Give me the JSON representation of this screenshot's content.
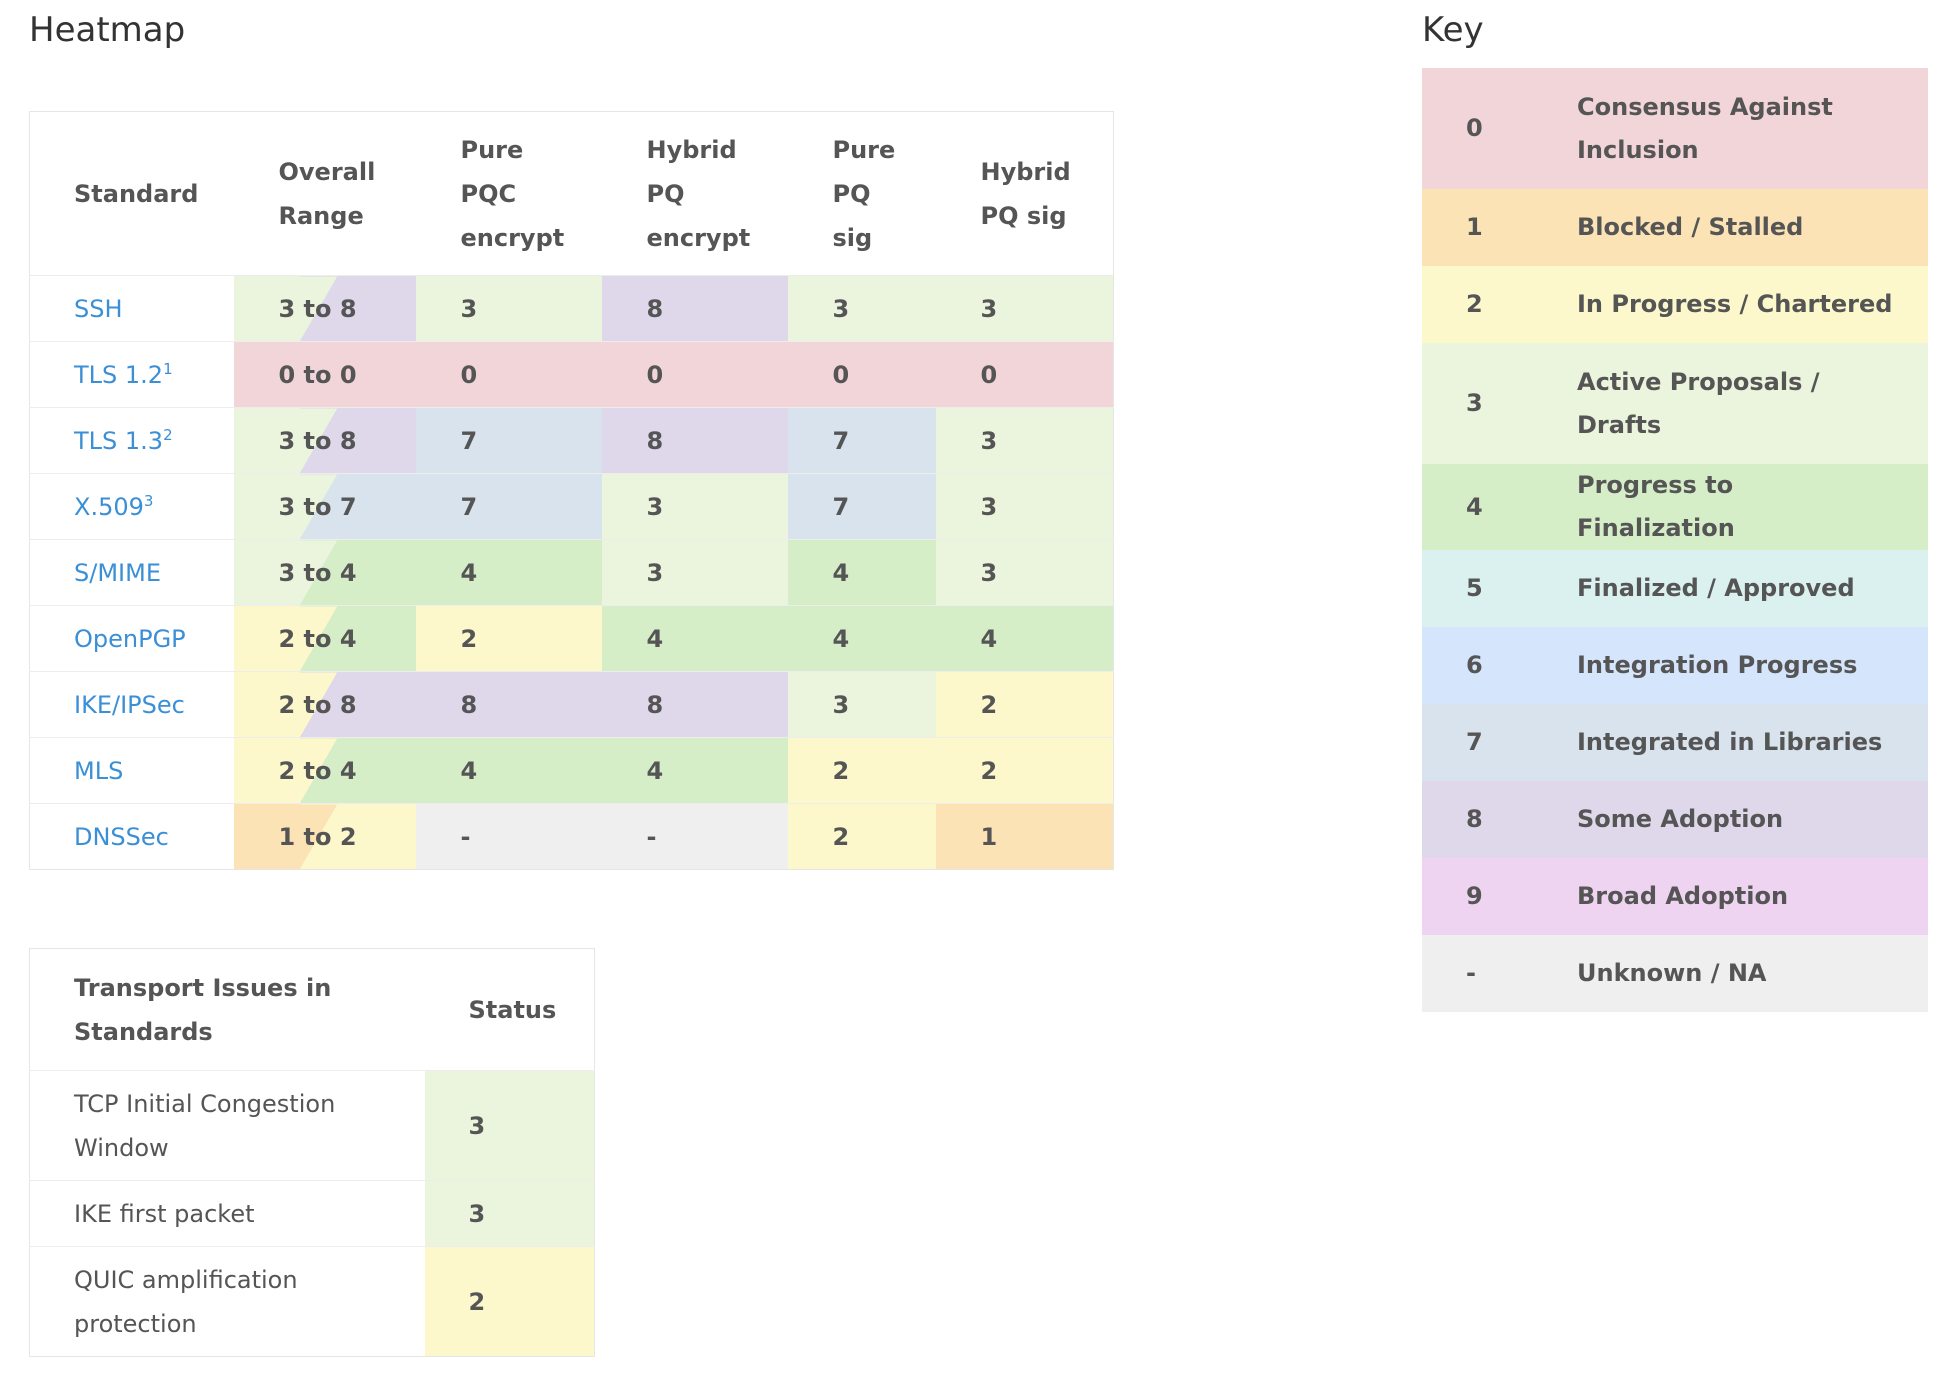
{
  "heatmap_title": "Heatmap",
  "key_title": "Key",
  "colors": {
    "0": "#f2d5d8",
    "1": "#fbe3b5",
    "2": "#fdf8cb",
    "3": "#ebf4dc",
    "4": "#d5eec7",
    "5": "#daf1f0",
    "6": "#d5e6fc",
    "7": "#d8e3ee",
    "8": "#ded8ea",
    "9": "#efd4f1",
    "-": "#efefef"
  },
  "chart_data": {
    "type": "heatmap",
    "columns": [
      "Standard",
      "Overall Range",
      "Pure PQC encrypt",
      "Hybrid PQ encrypt",
      "Pure PQ sig",
      "Hybrid PQ sig"
    ],
    "rows": [
      {
        "name": "SSH",
        "note": "",
        "range_low": "3",
        "range_high": "8",
        "range": "3 to 8",
        "values": [
          "3",
          "8",
          "3",
          "3"
        ]
      },
      {
        "name": "TLS 1.2",
        "note": "1",
        "range_low": "0",
        "range_high": "0",
        "range": "0 to 0",
        "values": [
          "0",
          "0",
          "0",
          "0"
        ]
      },
      {
        "name": "TLS 1.3",
        "note": "2",
        "range_low": "3",
        "range_high": "8",
        "range": "3 to 8",
        "values": [
          "7",
          "8",
          "7",
          "3"
        ]
      },
      {
        "name": "X.509",
        "note": "3",
        "range_low": "3",
        "range_high": "7",
        "range": "3 to 7",
        "values": [
          "7",
          "3",
          "7",
          "3"
        ]
      },
      {
        "name": "S/MIME",
        "note": "",
        "range_low": "3",
        "range_high": "4",
        "range": "3 to 4",
        "values": [
          "4",
          "3",
          "4",
          "3"
        ]
      },
      {
        "name": "OpenPGP",
        "note": "",
        "range_low": "2",
        "range_high": "4",
        "range": "2 to 4",
        "values": [
          "2",
          "4",
          "4",
          "4"
        ]
      },
      {
        "name": "IKE/IPSec",
        "note": "",
        "range_low": "2",
        "range_high": "8",
        "range": "2 to 8",
        "values": [
          "8",
          "8",
          "3",
          "2"
        ]
      },
      {
        "name": "MLS",
        "note": "",
        "range_low": "2",
        "range_high": "4",
        "range": "2 to 4",
        "values": [
          "4",
          "4",
          "2",
          "2"
        ]
      },
      {
        "name": "DNSSec",
        "note": "",
        "range_low": "1",
        "range_high": "2",
        "range": "1 to 2",
        "values": [
          "-",
          "-",
          "2",
          "1"
        ]
      }
    ]
  },
  "transport": {
    "header_name": "Transport Issues in Standards",
    "header_status": "Status",
    "rows": [
      {
        "name": "TCP Initial Congestion Window",
        "value": "3"
      },
      {
        "name": "IKE first packet",
        "value": "3"
      },
      {
        "name": "QUIC amplification protection",
        "value": "2"
      }
    ]
  },
  "key": [
    {
      "code": "0",
      "label": "Consensus Against Inclusion"
    },
    {
      "code": "1",
      "label": "Blocked / Stalled"
    },
    {
      "code": "2",
      "label": "In Progress / Chartered"
    },
    {
      "code": "3",
      "label": "Active Proposals / Drafts"
    },
    {
      "code": "4",
      "label": "Progress to Finalization"
    },
    {
      "code": "5",
      "label": "Finalized / Approved"
    },
    {
      "code": "6",
      "label": "Integration Progress"
    },
    {
      "code": "7",
      "label": "Integrated in Libraries"
    },
    {
      "code": "8",
      "label": "Some Adoption"
    },
    {
      "code": "9",
      "label": "Broad Adoption"
    },
    {
      "code": "-",
      "label": "Unknown / NA"
    }
  ]
}
